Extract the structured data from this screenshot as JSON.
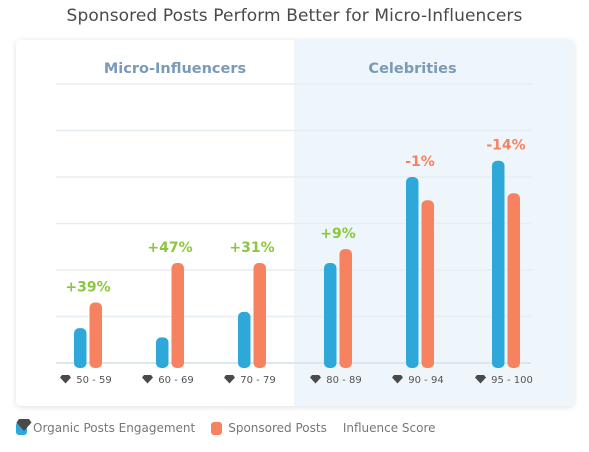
{
  "chart_data": {
    "type": "bar",
    "title": "Sponsored Posts Perform Better for Micro-Influencers",
    "groups": [
      {
        "label": "Micro-Influencers",
        "categories": [
          "50 - 59",
          "60 - 69",
          "70 - 79"
        ]
      },
      {
        "label": "Celebrities",
        "categories": [
          "80 - 89",
          "90 - 94",
          "95 - 100"
        ]
      }
    ],
    "categories": [
      "50 - 59",
      "60 - 69",
      "70 - 79",
      "80 - 89",
      "90 - 94",
      "95 - 100"
    ],
    "series": [
      {
        "name": "Organic Posts Engagement",
        "color": "#2ea8d8",
        "values": [
          0.75,
          0.55,
          1.1,
          2.15,
          4.0,
          4.35
        ]
      },
      {
        "name": "Sponsored Posts",
        "color": "#f7825f",
        "values": [
          1.3,
          2.15,
          2.15,
          2.45,
          3.5,
          3.65
        ]
      }
    ],
    "data_labels": [
      "+39%",
      "+47%",
      "+31%",
      "+9%",
      "-1%",
      "-14%"
    ],
    "data_label_colors": [
      "#8cc63f",
      "#8cc63f",
      "#8cc63f",
      "#8cc63f",
      "#f7825f",
      "#f7825f"
    ],
    "ylim": [
      0,
      6
    ],
    "grid": true,
    "legend": {
      "placement": "bottom-left",
      "items": [
        {
          "label": "Organic Posts Engagement",
          "color": "#2ea8d8",
          "icon": "bar-swatch"
        },
        {
          "label": "Sponsored Posts",
          "color": "#f7825f",
          "icon": "bar-swatch"
        },
        {
          "label": "Influence Score",
          "color": "#4a4a4a",
          "icon": "diamond-icon"
        }
      ]
    }
  },
  "colors": {
    "group_label": "#7a9ab8",
    "celebrity_panel": "#eef6fb",
    "grid": "#e6eef4",
    "tick_text": "#555555"
  }
}
